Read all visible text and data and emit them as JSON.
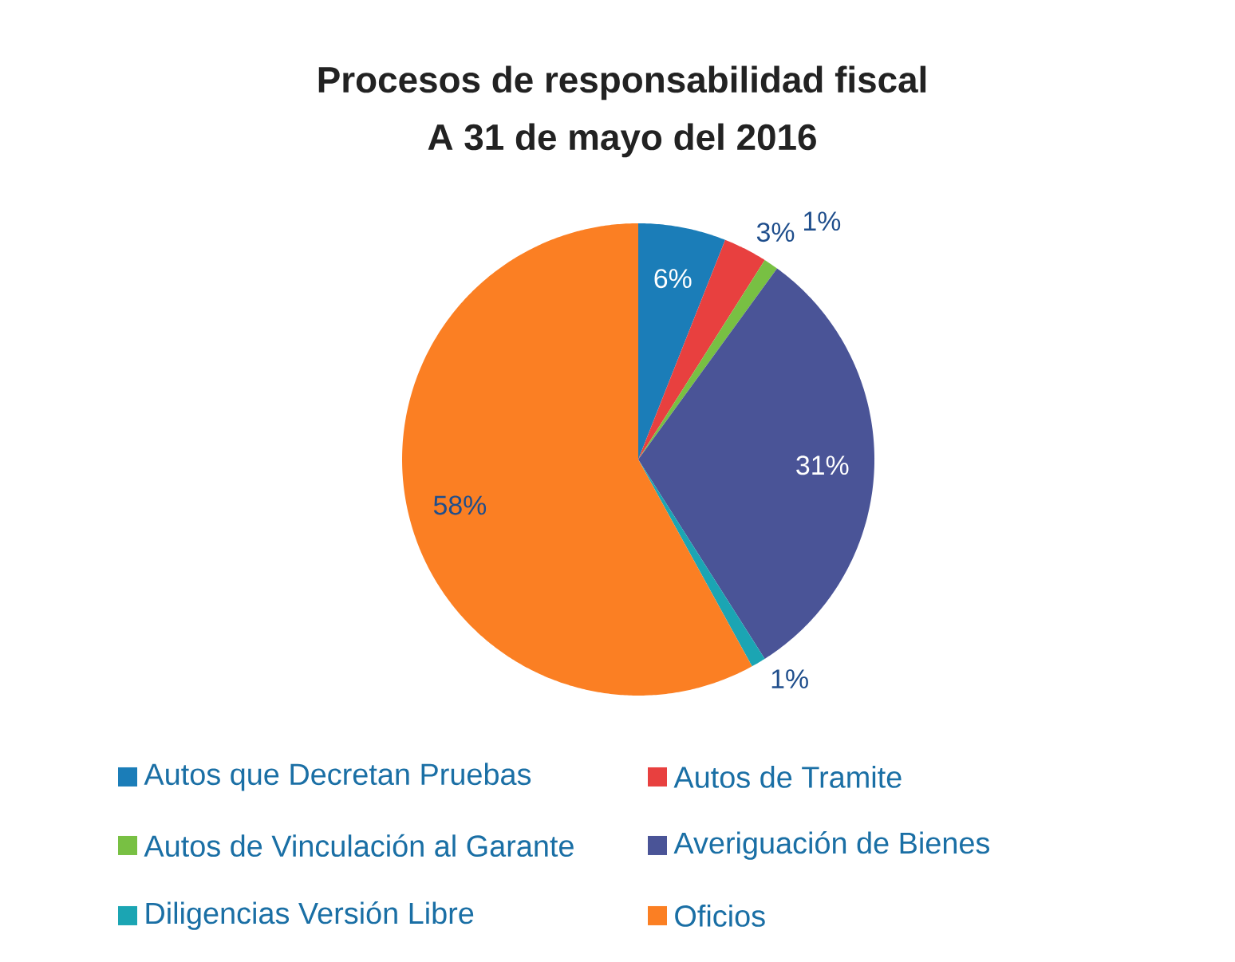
{
  "chart_data": {
    "type": "pie",
    "title": "Procesos de responsabilidad fiscal",
    "subtitle": "A 31 de mayo del 2016",
    "categories": [
      "Autos que Decretan Pruebas",
      "Autos de Tramite",
      "Autos de Vinculación al Garante",
      "Averiguación de Bienes",
      "Diligencias Versión Libre",
      "Oficios"
    ],
    "values": [
      6,
      3,
      1,
      31,
      1,
      58
    ],
    "value_labels": [
      "6%",
      "3%",
      "1%",
      "31%",
      "1%",
      "58%"
    ],
    "colors": [
      "#1b7db8",
      "#e8403f",
      "#78c043",
      "#4a5497",
      "#1ba5b3",
      "#fb7f23"
    ],
    "legend": "bottom"
  }
}
